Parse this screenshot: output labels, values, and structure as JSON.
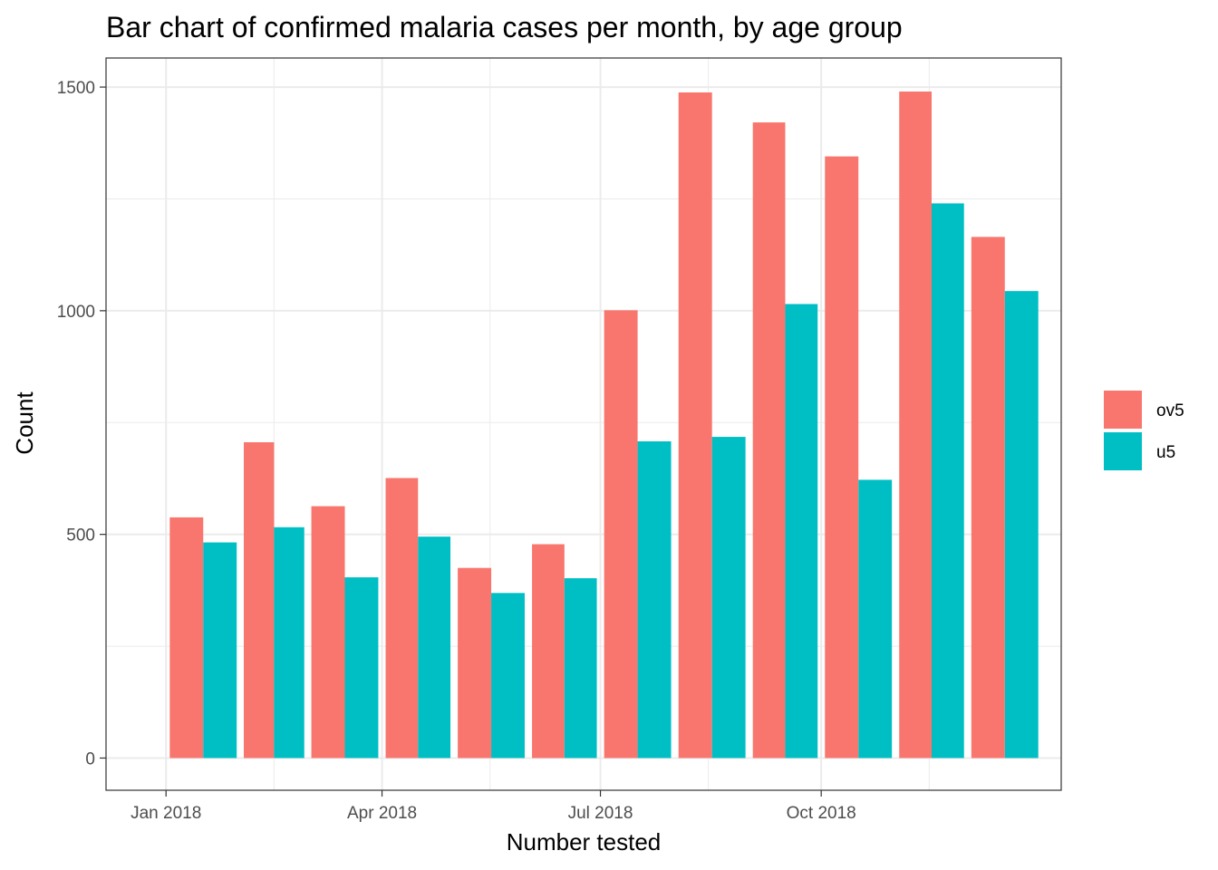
{
  "chart_data": {
    "type": "bar",
    "title": "Bar chart of confirmed malaria cases per month, by age group",
    "xlabel": "Number tested",
    "ylabel": "Count",
    "categories": [
      "2018-01",
      "2018-02",
      "2018-03",
      "2018-04",
      "2018-05",
      "2018-06",
      "2018-07",
      "2018-08",
      "2018-09",
      "2018-10",
      "2018-11",
      "2018-12"
    ],
    "series": [
      {
        "name": "ov5",
        "color": "#F8766D",
        "values": [
          538,
          706,
          563,
          626,
          425,
          478,
          1001,
          1488,
          1421,
          1345,
          1490,
          1165
        ]
      },
      {
        "name": "u5",
        "color": "#00BFC4",
        "values": [
          482,
          516,
          404,
          495,
          369,
          402,
          708,
          718,
          1015,
          622,
          1240,
          1044
        ]
      }
    ],
    "x_ticks": [
      {
        "label": "Jan 2018",
        "date": "2018-01-01"
      },
      {
        "label": "Apr 2018",
        "date": "2018-04-01"
      },
      {
        "label": "Jul 2018",
        "date": "2018-07-01"
      },
      {
        "label": "Oct 2018",
        "date": "2018-10-01"
      }
    ],
    "xlim": [
      "2017-12-07",
      "2019-01-09"
    ],
    "y_ticks": [
      0,
      500,
      1000,
      1500
    ],
    "ylim": [
      -72,
      1565
    ],
    "grid": true,
    "legend_position": "right"
  }
}
